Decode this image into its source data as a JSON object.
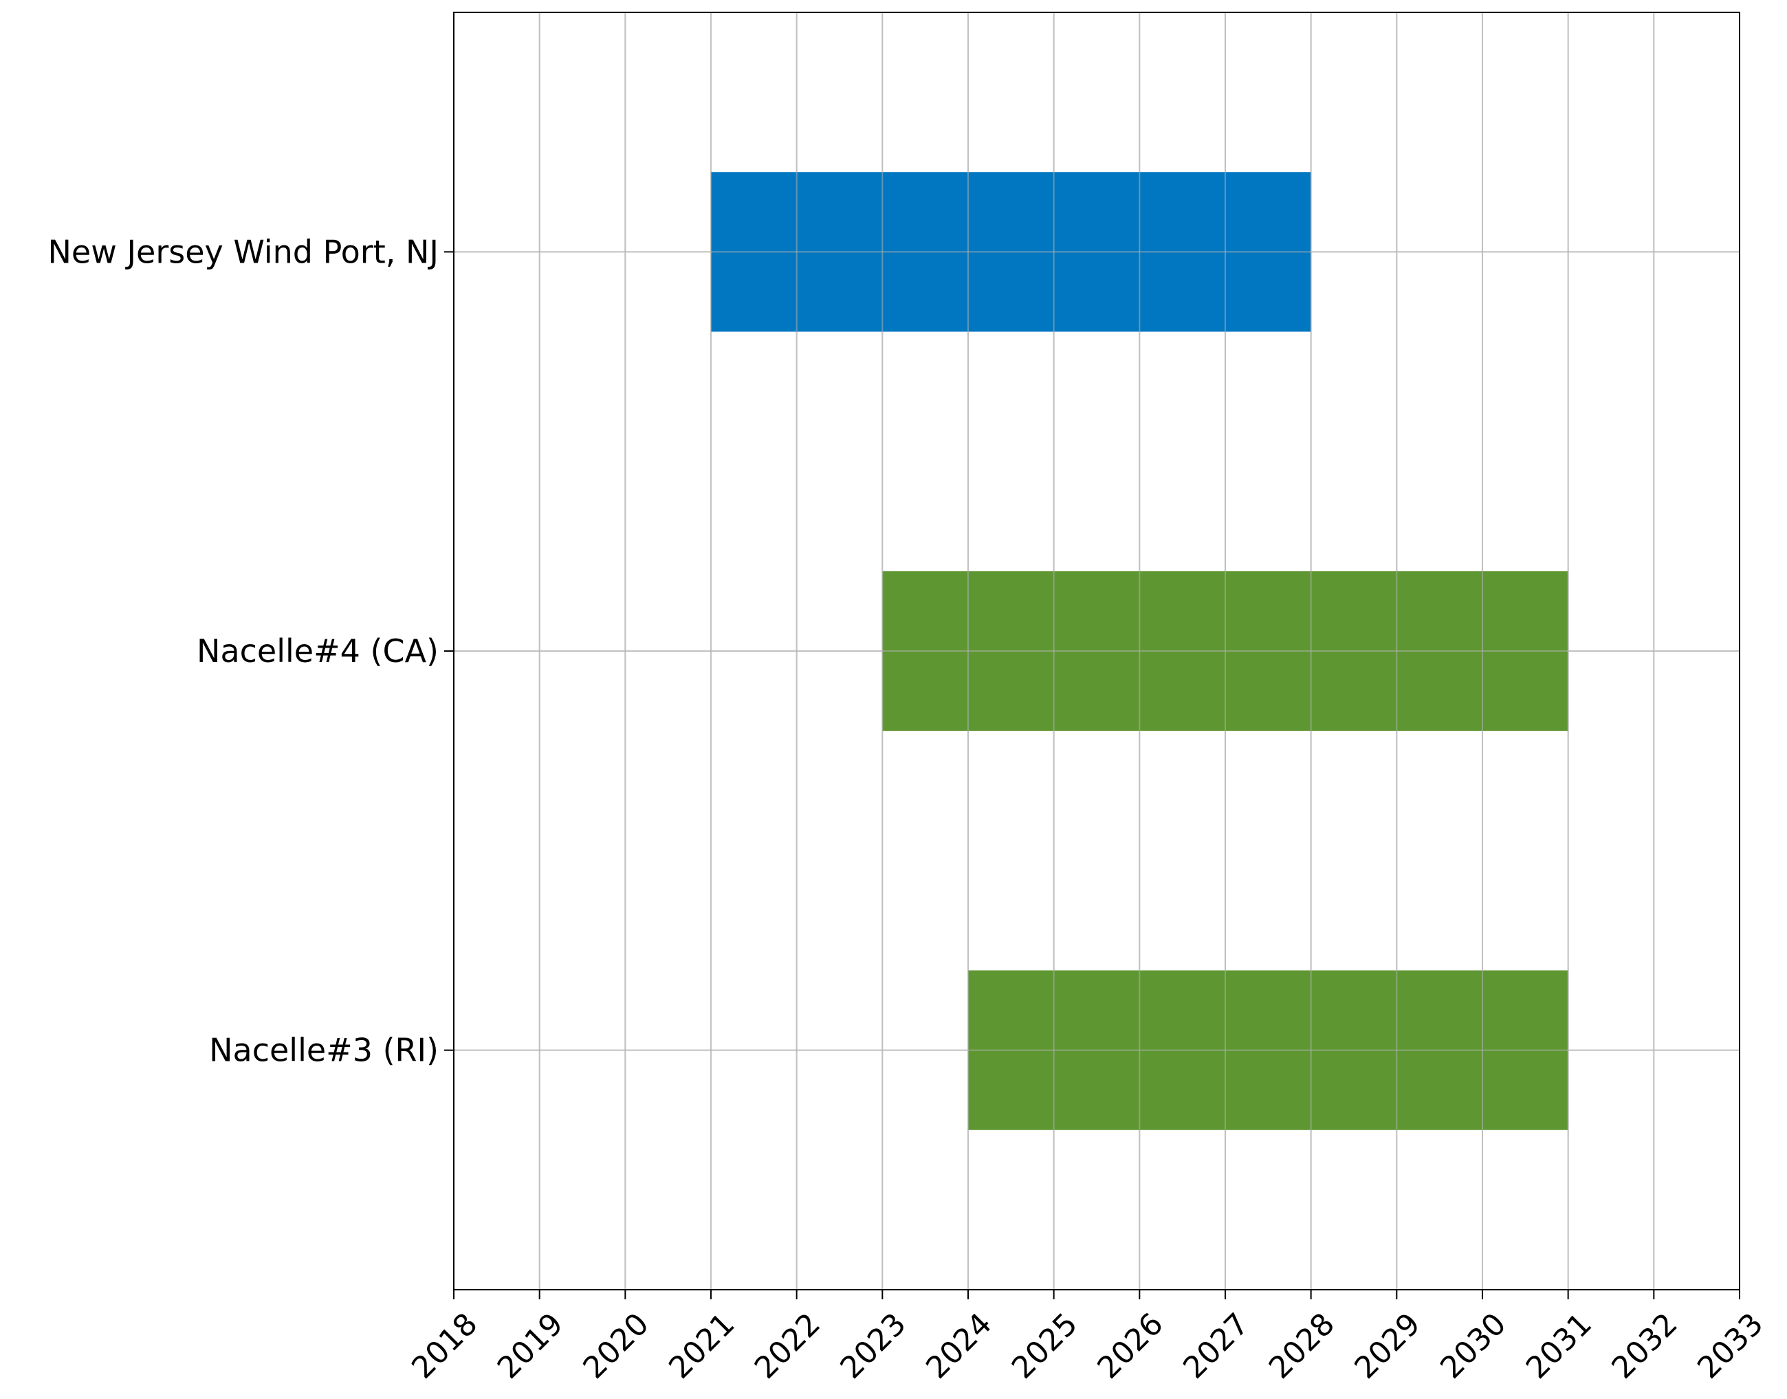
{
  "chart_data": {
    "type": "bar",
    "orientation": "horizontal",
    "title": "",
    "xlabel": "",
    "ylabel": "",
    "xlim": [
      2018,
      2033
    ],
    "x_ticks": [
      2018,
      2019,
      2020,
      2021,
      2022,
      2023,
      2024,
      2025,
      2026,
      2027,
      2028,
      2029,
      2030,
      2031,
      2032,
      2033
    ],
    "grid": true,
    "legend": "none",
    "categories": [
      "New Jersey Wind Port, NJ",
      "Nacelle#4 (CA)",
      "Nacelle#3 (RI)"
    ],
    "bars": [
      {
        "category": "New Jersey Wind Port, NJ",
        "start": 2021,
        "end": 2028,
        "color": "#0077c0"
      },
      {
        "category": "Nacelle#4 (CA)",
        "start": 2023,
        "end": 2031,
        "color": "#5e9732"
      },
      {
        "category": "Nacelle#3 (RI)",
        "start": 2024,
        "end": 2031,
        "color": "#5e9732"
      }
    ]
  }
}
